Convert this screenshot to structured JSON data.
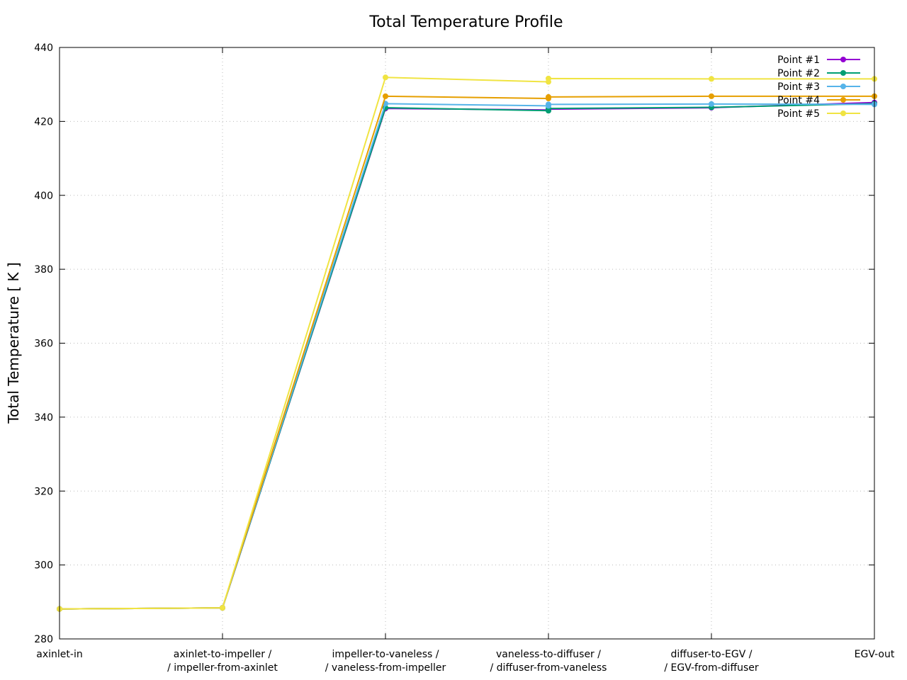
{
  "chart_data": {
    "type": "line",
    "title": "Total Temperature Profile",
    "xlabel": "",
    "ylabel": "Total Temperature [ K ]",
    "ylim": [
      280,
      440
    ],
    "yticks": [
      280,
      300,
      320,
      340,
      360,
      380,
      400,
      420,
      440
    ],
    "grid": true,
    "legend_position": "top-right",
    "categories": [
      [
        "axinlet-in"
      ],
      [
        "axinlet-to-impeller /",
        "/ impeller-from-axinlet"
      ],
      [
        "impeller-to-vaneless /",
        "/ vaneless-from-impeller"
      ],
      [
        "vaneless-to-diffuser /",
        "/ diffuser-from-vaneless"
      ],
      [
        "diffuser-to-EGV /",
        "/ EGV-from-diffuser"
      ],
      [
        "EGV-out"
      ]
    ],
    "series": [
      {
        "name": "Point #1",
        "color": "#9400d3",
        "points": [
          [
            0,
            288.1
          ],
          [
            1,
            288.4
          ],
          [
            2,
            423.5
          ],
          [
            3,
            423.1
          ],
          [
            3,
            423.3
          ],
          [
            4,
            423.7
          ],
          [
            5,
            425.1
          ]
        ]
      },
      {
        "name": "Point #2",
        "color": "#009e73",
        "points": [
          [
            0,
            288.1
          ],
          [
            1,
            288.4
          ],
          [
            2,
            423.7
          ],
          [
            3,
            422.9
          ],
          [
            3,
            423.5
          ],
          [
            4,
            423.8
          ],
          [
            5,
            424.8
          ]
        ]
      },
      {
        "name": "Point #3",
        "color": "#56b4e9",
        "points": [
          [
            0,
            288.1
          ],
          [
            1,
            288.4
          ],
          [
            2,
            424.8
          ],
          [
            3,
            424.2
          ],
          [
            3,
            424.6
          ],
          [
            4,
            424.7
          ],
          [
            5,
            424.6
          ]
        ]
      },
      {
        "name": "Point #4",
        "color": "#e69f00",
        "points": [
          [
            0,
            288.1
          ],
          [
            1,
            288.4
          ],
          [
            2,
            426.8
          ],
          [
            3,
            426.2
          ],
          [
            3,
            426.6
          ],
          [
            4,
            426.8
          ],
          [
            5,
            426.8
          ]
        ]
      },
      {
        "name": "Point #5",
        "color": "#f0e442",
        "points": [
          [
            0,
            288.1
          ],
          [
            1,
            288.4
          ],
          [
            2,
            431.9
          ],
          [
            3,
            430.7
          ],
          [
            3,
            431.6
          ],
          [
            4,
            431.5
          ],
          [
            5,
            431.5
          ]
        ]
      }
    ]
  }
}
